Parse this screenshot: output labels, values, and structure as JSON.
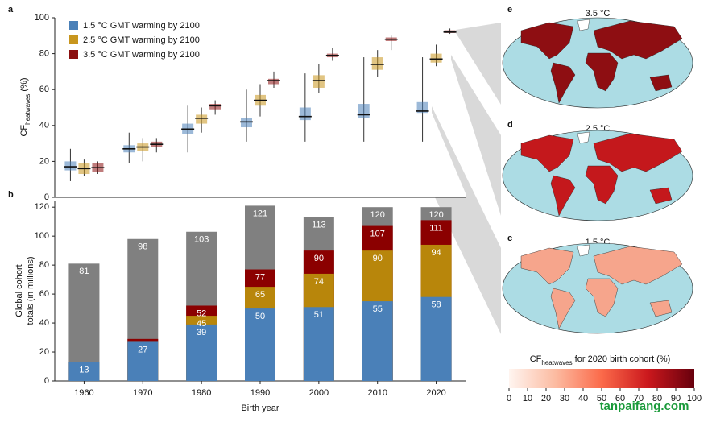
{
  "chart_data": [
    {
      "type": "box",
      "panel_label": "a",
      "ylabel": [
        "CF",
        "heatwaves",
        " (%)"
      ],
      "ylim": [
        0,
        100
      ],
      "yticks": [
        0,
        20,
        40,
        60,
        80,
        100
      ],
      "series": [
        {
          "name": "1.5 °C GMT warming by 2100",
          "color": "#4a80b8",
          "values": [
            17,
            27,
            38,
            42,
            45,
            46,
            48
          ],
          "q1": [
            15,
            25,
            35,
            39,
            43,
            44,
            47
          ],
          "q3": [
            20,
            29,
            41,
            44,
            50,
            52,
            53
          ],
          "whislo": [
            9,
            19,
            25,
            31,
            31,
            31,
            31
          ],
          "whishi": [
            27,
            36,
            51,
            60,
            69,
            78,
            78
          ]
        },
        {
          "name": "2.5 °C GMT warming by 2100",
          "color": "#c8961e",
          "values": [
            16,
            28,
            44,
            54,
            65,
            74,
            77
          ],
          "q1": [
            13,
            26,
            41,
            51,
            61,
            71,
            75
          ],
          "q3": [
            19,
            30,
            46,
            57,
            68,
            78,
            80
          ],
          "whislo": [
            12,
            20,
            36,
            45,
            58,
            67,
            73
          ],
          "whishi": [
            21,
            33,
            50,
            63,
            74,
            82,
            85
          ]
        },
        {
          "name": "3.5 °C GMT warming by 2100",
          "color": "#8b1010",
          "values": [
            16.5,
            29.5,
            51,
            65,
            79,
            88,
            92
          ],
          "q1": [
            14,
            28,
            49,
            63,
            78,
            87,
            91.5
          ],
          "q3": [
            19,
            31,
            52,
            66,
            80,
            89,
            93
          ],
          "whislo": [
            13,
            25,
            46,
            61,
            76,
            82,
            91
          ],
          "whishi": [
            20,
            33,
            54,
            70,
            83,
            90,
            94
          ]
        }
      ]
    },
    {
      "type": "bar",
      "panel_label": "b",
      "ylabel": [
        "Global cohort",
        "totals (in millions)"
      ],
      "xlabel": "Birth year",
      "categories": [
        "1960",
        "1970",
        "1980",
        "1990",
        "2000",
        "2010",
        "2020"
      ],
      "ylim": [
        0,
        124
      ],
      "yticks": [
        0,
        20,
        40,
        60,
        80,
        100,
        120
      ],
      "series": [
        {
          "color": "#4a80b8",
          "values": [
            13,
            27,
            39,
            50,
            51,
            55,
            58
          ]
        },
        {
          "color": "#b8860b",
          "values": [
            13,
            27,
            45,
            65,
            74,
            90,
            94
          ]
        },
        {
          "color": "#8b0000",
          "values": [
            13,
            29,
            52,
            77,
            90,
            107,
            111
          ]
        },
        {
          "color": "#808080",
          "values": [
            81,
            98,
            103,
            121,
            113,
            120,
            120
          ]
        }
      ]
    }
  ],
  "maps": [
    {
      "label": "e",
      "title": "3.5 °C"
    },
    {
      "label": "d",
      "title": "2.5 °C"
    },
    {
      "label": "c",
      "title": "1.5 °C"
    }
  ],
  "colorbar": {
    "title": [
      "CF",
      "heatwaves",
      " for 2020 birth cohort (%)"
    ],
    "lim": [
      0,
      100
    ],
    "ticks": [
      0,
      10,
      20,
      30,
      40,
      50,
      60,
      70,
      80,
      90,
      100
    ],
    "colors": [
      "#fff5f0",
      "#fcbba1",
      "#fb6a4a",
      "#cb181d",
      "#67000d"
    ]
  },
  "watermark": "tanpaifang.com"
}
